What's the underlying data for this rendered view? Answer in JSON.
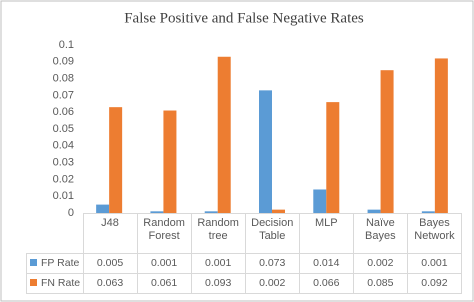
{
  "chart_data": {
    "type": "bar",
    "title": "False Positive and False Negative Rates",
    "categories": [
      "J48",
      "Random Forest",
      "Random tree",
      "Decision Table",
      "MLP",
      "Naïve Bayes",
      "Bayes Network"
    ],
    "series": [
      {
        "name": "FP Rate",
        "color": "#5b9bd5",
        "values": [
          0.005,
          0.001,
          0.001,
          0.073,
          0.014,
          0.002,
          0.001
        ]
      },
      {
        "name": "FN Rate",
        "color": "#ed7d31",
        "values": [
          0.063,
          0.061,
          0.093,
          0.002,
          0.066,
          0.085,
          0.092
        ]
      }
    ],
    "ylim": [
      0,
      0.1
    ],
    "yticks": [
      0,
      0.01,
      0.02,
      0.03,
      0.04,
      0.05,
      0.06,
      0.07,
      0.08,
      0.09,
      0.1
    ],
    "grid": false,
    "data_table": true
  }
}
